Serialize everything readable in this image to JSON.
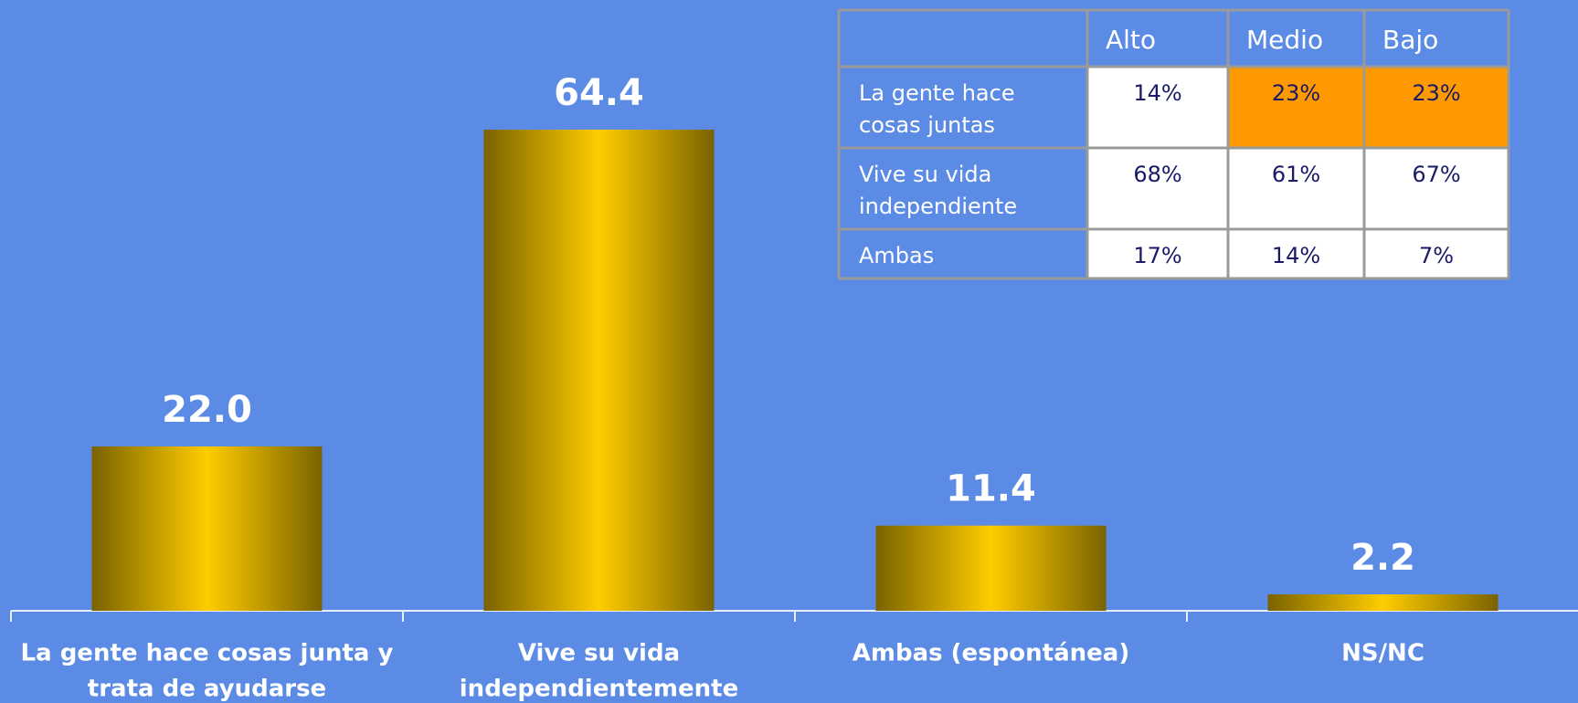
{
  "chart_data": {
    "type": "bar",
    "categories": [
      [
        "La gente hace cosas junta y",
        "trata de ayudarse"
      ],
      [
        "Vive su vida",
        "independientemente"
      ],
      [
        "Ambas (espontánea)"
      ],
      [
        "NS/NC"
      ]
    ],
    "values": [
      22.0,
      64.4,
      11.4,
      2.2
    ],
    "value_labels": [
      "22.0",
      "64.4",
      "11.4",
      "2.2"
    ],
    "color": "#ffcc00"
  },
  "table": {
    "columns": [
      "Alto",
      "Medio",
      "Bajo"
    ],
    "rows": [
      {
        "label": [
          "La gente hace",
          "cosas juntas"
        ],
        "cells": [
          "14%",
          "23%",
          "23%"
        ]
      },
      {
        "label": [
          "Vive su vida",
          "independiente"
        ],
        "cells": [
          "68%",
          "61%",
          "67%"
        ]
      },
      {
        "label": [
          "Ambas"
        ],
        "cells": [
          "17%",
          "14%",
          "7%"
        ]
      }
    ],
    "highlight": {
      "color": "#ff9900",
      "cells": [
        [
          0,
          1
        ],
        [
          0,
          2
        ]
      ]
    }
  }
}
